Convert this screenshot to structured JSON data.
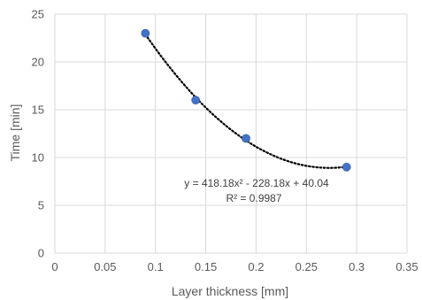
{
  "chart_data": {
    "type": "scatter",
    "xlabel": "Layer thickness [mm]",
    "ylabel": "Time [min]",
    "xlim": [
      0,
      0.35
    ],
    "ylim": [
      0,
      25
    ],
    "x_ticks": [
      "0",
      "0.05",
      "0.1",
      "0.15",
      "0.2",
      "0.25",
      "0.3",
      "0.35"
    ],
    "y_ticks": [
      "0",
      "5",
      "10",
      "15",
      "20",
      "25"
    ],
    "grid": "on",
    "legend": "none",
    "points": [
      {
        "x": 0.09,
        "y": 23
      },
      {
        "x": 0.14,
        "y": 16
      },
      {
        "x": 0.19,
        "y": 12
      },
      {
        "x": 0.29,
        "y": 9
      }
    ],
    "trendline": {
      "type": "polynomial",
      "order": 2,
      "coefficients": [
        418.18,
        -228.18,
        40.04
      ],
      "x_range": [
        0.09,
        0.29
      ],
      "equation_label": "y = 418.18x² - 228.18x + 40.04",
      "r2_label": "R² = 0.9987"
    },
    "colors": {
      "marker": "#4472c4",
      "trendline": "#000000",
      "grid": "#d9d9d9",
      "text": "#595959"
    }
  }
}
